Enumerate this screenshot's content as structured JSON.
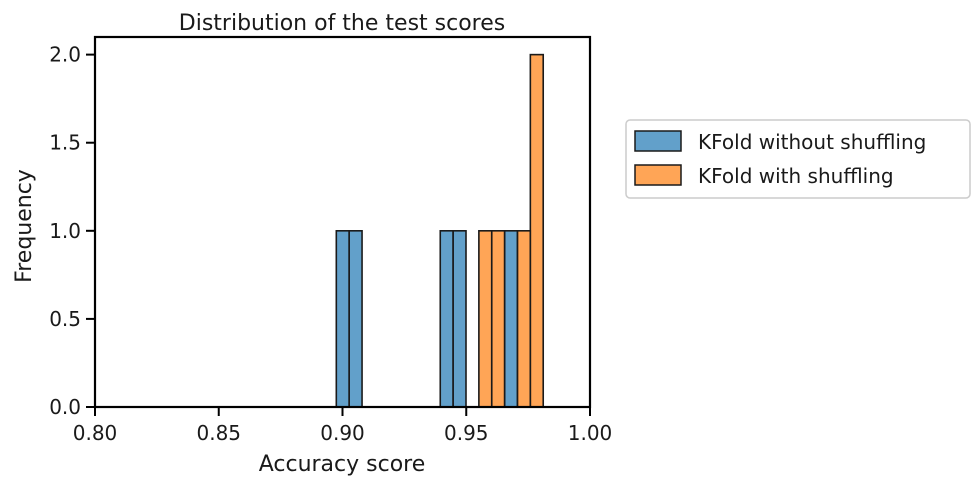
{
  "chart_data": {
    "type": "bar",
    "title": "Distribution of the test scores",
    "xlabel": "Accuracy score",
    "ylabel": "Frequency",
    "xlim": [
      0.8,
      1.0
    ],
    "ylim": [
      0.0,
      2.1
    ],
    "xticks": [
      "0.80",
      "0.85",
      "0.90",
      "0.95",
      "1.00"
    ],
    "yticks": [
      "0.0",
      "0.5",
      "1.0",
      "1.5",
      "2.0"
    ],
    "grid": false,
    "legend_position": "outside-right",
    "series": [
      {
        "name": "KFold without shuffling",
        "color": "#1f77b4",
        "bins": [
          {
            "x0": 0.8975,
            "x1": 0.9027,
            "count": 1
          },
          {
            "x0": 0.9027,
            "x1": 0.9079,
            "count": 1
          },
          {
            "x0": 0.9395,
            "x1": 0.9447,
            "count": 1
          },
          {
            "x0": 0.9447,
            "x1": 0.9499,
            "count": 1
          },
          {
            "x0": 0.9655,
            "x1": 0.9707,
            "count": 1
          }
        ]
      },
      {
        "name": "KFold with shuffling",
        "color": "#ff7f0e",
        "bins": [
          {
            "x0": 0.9551,
            "x1": 0.9603,
            "count": 1
          },
          {
            "x0": 0.9603,
            "x1": 0.9655,
            "count": 1
          },
          {
            "x0": 0.9707,
            "x1": 0.9759,
            "count": 1
          },
          {
            "x0": 0.9759,
            "x1": 0.9811,
            "count": 2
          }
        ]
      }
    ]
  }
}
